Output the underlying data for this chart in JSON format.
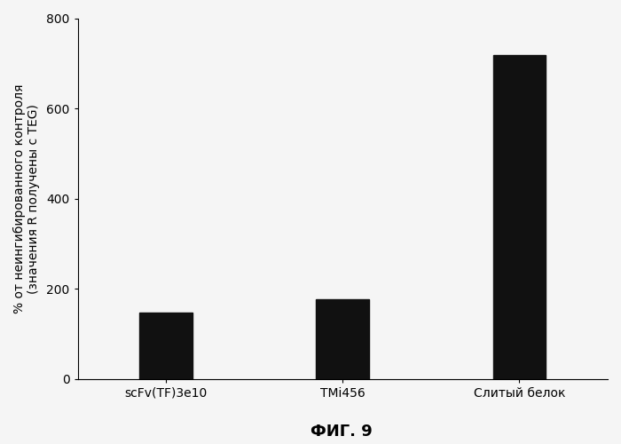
{
  "categories": [
    "scFv(TF)3e10",
    "TMi456",
    "Слитый белок"
  ],
  "values": [
    148,
    178,
    718
  ],
  "bar_color": "#111111",
  "bar_width": 0.3,
  "ylim": [
    0,
    800
  ],
  "yticks": [
    0,
    200,
    400,
    600,
    800
  ],
  "ylabel_line1": "% от неингибированного контроля",
  "ylabel_line2": "(значения R получены с TEG)",
  "figure_label": "ФИГ. 9",
  "background_color": "#f5f5f5",
  "ylabel_fontsize": 10,
  "tick_fontsize": 10,
  "figure_label_fontsize": 13,
  "xlim": [
    -0.5,
    2.5
  ]
}
